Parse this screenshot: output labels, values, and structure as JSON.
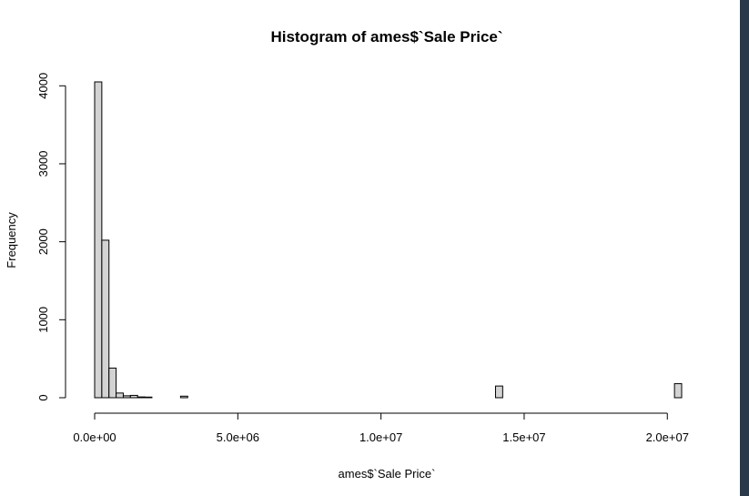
{
  "chart_data": {
    "type": "bar",
    "title": "Histogram of ames$`Sale Price`",
    "xlabel": "ames$`Sale Price`",
    "ylabel": "Frequency",
    "bin_width": 250000,
    "xlim": [
      0,
      20500000
    ],
    "ylim": [
      0,
      4050
    ],
    "x_ticks": [
      {
        "value": 0,
        "label": "0.0e+00"
      },
      {
        "value": 5000000,
        "label": "5.0e+06"
      },
      {
        "value": 10000000,
        "label": "1.0e+07"
      },
      {
        "value": 15000000,
        "label": "1.5e+07"
      },
      {
        "value": 20000000,
        "label": "2.0e+07"
      }
    ],
    "y_ticks": [
      {
        "value": 0,
        "label": "0"
      },
      {
        "value": 1000,
        "label": "1000"
      },
      {
        "value": 2000,
        "label": "2000"
      },
      {
        "value": 3000,
        "label": "3000"
      },
      {
        "value": 4000,
        "label": "4000"
      }
    ],
    "bins": [
      {
        "start": 0,
        "end": 250000,
        "count": 4050
      },
      {
        "start": 250000,
        "end": 500000,
        "count": 2020
      },
      {
        "start": 500000,
        "end": 750000,
        "count": 380
      },
      {
        "start": 750000,
        "end": 1000000,
        "count": 60
      },
      {
        "start": 1000000,
        "end": 1250000,
        "count": 25
      },
      {
        "start": 1250000,
        "end": 1500000,
        "count": 30
      },
      {
        "start": 1500000,
        "end": 1750000,
        "count": 10
      },
      {
        "start": 1750000,
        "end": 2000000,
        "count": 8
      },
      {
        "start": 3000000,
        "end": 3250000,
        "count": 20
      },
      {
        "start": 14000000,
        "end": 14250000,
        "count": 150
      },
      {
        "start": 20250000,
        "end": 20500000,
        "count": 180
      }
    ],
    "bar_fill": "#d3d3d3",
    "bar_stroke": "#000000",
    "grid": false,
    "legend": "none"
  },
  "frame": {
    "side_bar_color": "#2b3a4a"
  }
}
